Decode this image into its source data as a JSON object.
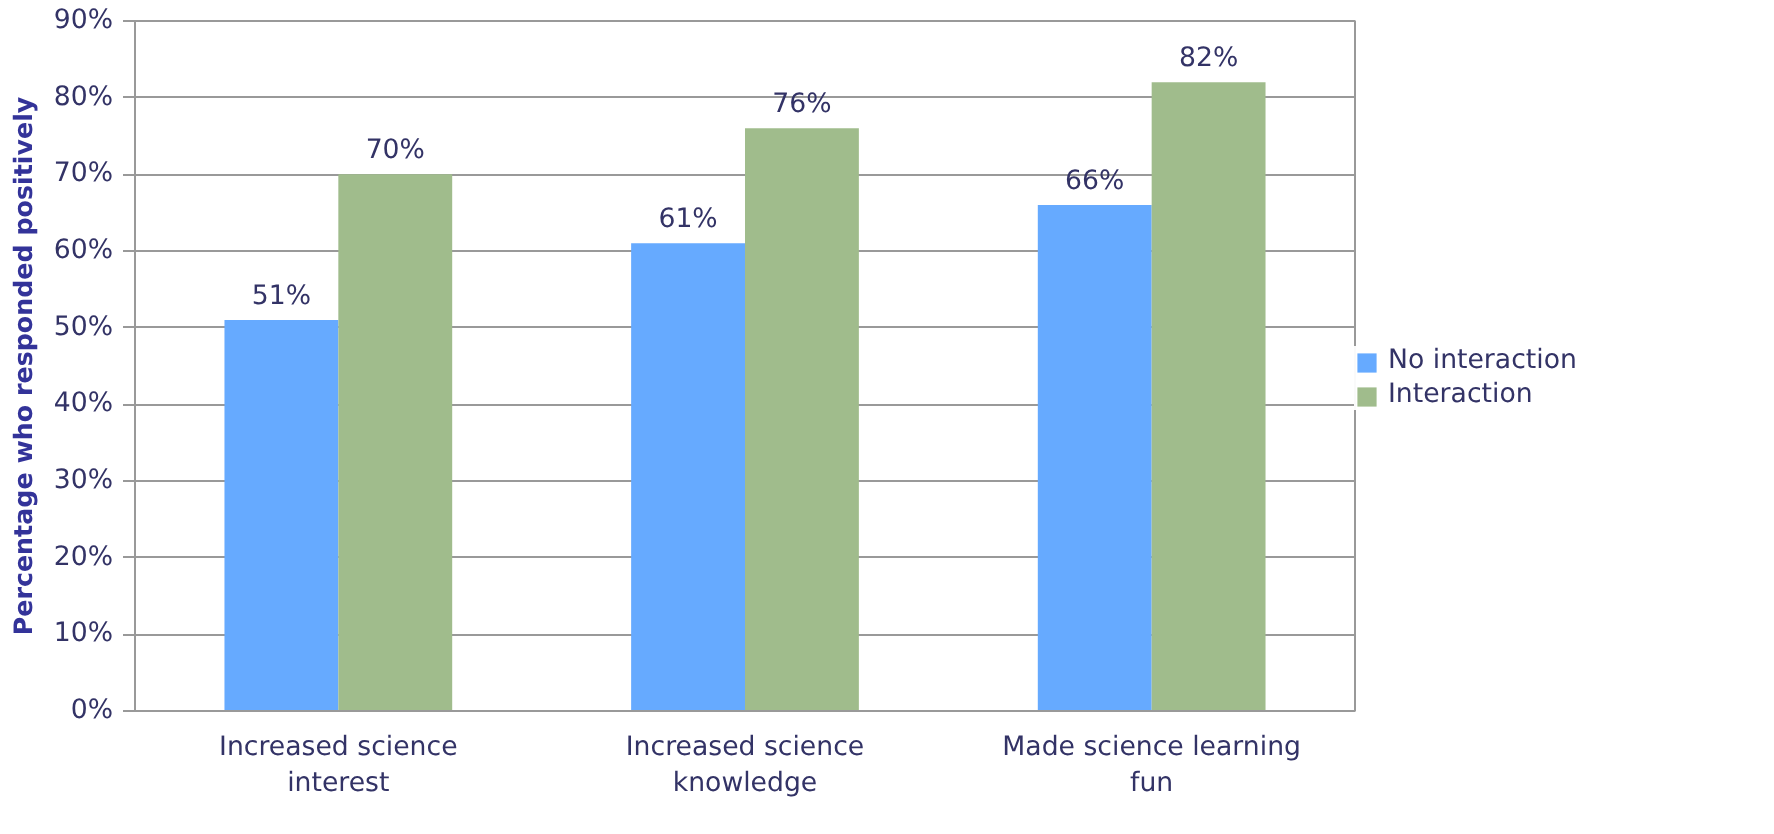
{
  "chart_data": {
    "type": "bar",
    "ylabel": "Percentage who responded positively",
    "categories": [
      "Increased science interest",
      "Increased science knowledge",
      "Made science learning fun"
    ],
    "series": [
      {
        "name": "No interaction",
        "color": "#66aaff",
        "values": [
          51,
          61,
          66
        ],
        "value_labels": [
          "51%",
          "61%",
          "66%"
        ]
      },
      {
        "name": "Interaction",
        "color": "#a0bc8c",
        "values": [
          70,
          76,
          82
        ],
        "value_labels": [
          "70%",
          "76%",
          "82%"
        ]
      }
    ],
    "ylim": [
      0,
      90
    ],
    "yticks": [
      {
        "value": 0,
        "label": "0%"
      },
      {
        "value": 10,
        "label": "10%"
      },
      {
        "value": 20,
        "label": "20%"
      },
      {
        "value": 30,
        "label": "30%"
      },
      {
        "value": 40,
        "label": "40%"
      },
      {
        "value": 50,
        "label": "50%"
      },
      {
        "value": 60,
        "label": "60%"
      },
      {
        "value": 70,
        "label": "70%"
      },
      {
        "value": 80,
        "label": "80%"
      },
      {
        "value": 90,
        "label": "90%"
      }
    ],
    "grid": "y",
    "legend": "right"
  }
}
